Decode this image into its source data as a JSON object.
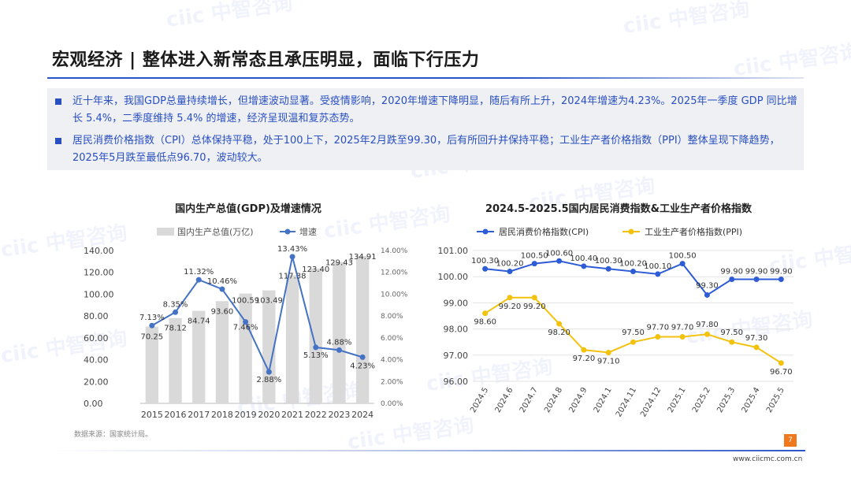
{
  "page": {
    "title": "宏观经济 | 整体进入新常态且承压明显，面临下行压力",
    "bullets": [
      "近十年来，我国GDP总量持续增长，但增速波动显著。受疫情影响，2020年增速下降明显，随后有所上升，2024年增速为4.23%。2025年一季度 GDP 同比增长 5.4%，二季度维持 5.4% 的增速，经济呈现温和复苏态势。",
      "居民消费价格指数（CPI）总体保持平稳，处于100上下，2025年2月跌至99.30，后有所回升并保持平稳；工业生产者价格指数（PPI）整体呈现下降趋势，2025年5月跌至最低点96.70，波动较大。"
    ],
    "source": "数据来源：国家统计局。",
    "page_number": "7",
    "url": "www.ciicmc.com.cn",
    "watermark": "ciic 中智咨询",
    "colors": {
      "accent": "#2a55c8",
      "bar": "#d9d9d9",
      "growth_line": "#4472c4",
      "cpi_line": "#2e5bd6",
      "ppi_line": "#f2c20f",
      "page_badge": "#f0791e"
    }
  },
  "chart_data": [
    {
      "type": "bar",
      "title": "国内生产总值(GDP)及增速情况",
      "categories": [
        "2015",
        "2016",
        "2017",
        "2018",
        "2019",
        "2020",
        "2021",
        "2022",
        "2023",
        "2024"
      ],
      "series": [
        {
          "name": "国内生产总值(万亿)",
          "kind": "bar",
          "axis": "left",
          "values": [
            70.25,
            78.12,
            84.74,
            93.6,
            100.59,
            103.49,
            117.38,
            123.4,
            129.43,
            134.91
          ],
          "labels": [
            "70.25",
            "78.12",
            "84.74",
            "93.60",
            "100.59",
            "103.49",
            "117.38",
            "123.40",
            "129.43",
            "134.91"
          ]
        },
        {
          "name": "增速",
          "kind": "line",
          "axis": "right",
          "values": [
            7.13,
            8.35,
            11.32,
            10.46,
            7.46,
            2.88,
            13.43,
            5.13,
            4.88,
            4.23
          ],
          "labels": [
            "7.13%",
            "8.35%",
            "11.32%",
            "10.46%",
            "7.46%",
            "2.88%",
            "13.43%",
            "5.13%",
            "4.88%",
            "4.23%"
          ]
        }
      ],
      "y_left": {
        "min": 0,
        "max": 140,
        "ticks": [
          "0.00",
          "20.00",
          "40.00",
          "60.00",
          "80.00",
          "100.00",
          "120.00",
          "140.00"
        ]
      },
      "y_right": {
        "min": 0,
        "max": 14,
        "ticks": [
          "0.00%",
          "2.00%",
          "4.00%",
          "6.00%",
          "8.00%",
          "10.00%",
          "12.00%",
          "14.00%"
        ]
      },
      "legend": "top",
      "grid": false
    },
    {
      "type": "line",
      "title": "2024.5-2025.5国内居民消费指数&工业生产者价格指数",
      "categories": [
        "2024.5",
        "2024.6",
        "2024.7",
        "2024.8",
        "2024.9",
        "2024.1",
        "2024.11",
        "2024.12",
        "2025.1",
        "2025.2",
        "2025.3",
        "2025.4",
        "2025.5"
      ],
      "series": [
        {
          "name": "居民消费价格指数(CPI)",
          "values": [
            100.3,
            100.2,
            100.5,
            100.6,
            100.4,
            100.3,
            100.2,
            100.1,
            100.5,
            99.3,
            99.9,
            99.9,
            99.9
          ],
          "labels": [
            "100.30",
            "100.20",
            "100.50",
            "100.60",
            "100.40",
            "100.30",
            "100.20",
            "100.10",
            "100.50",
            "99.30",
            "99.90",
            "99.90",
            "99.90"
          ]
        },
        {
          "name": "工业生产者价格指数(PPI)",
          "values": [
            98.6,
            99.2,
            99.2,
            98.2,
            97.2,
            97.1,
            97.5,
            97.7,
            97.7,
            97.8,
            97.5,
            97.3,
            96.7
          ],
          "labels": [
            "98.60",
            "99.20",
            "99.20",
            "98.20",
            "97.20",
            "97.10",
            "97.50",
            "97.70",
            "97.70",
            "97.80",
            "97.50",
            "97.30",
            "96.70"
          ]
        }
      ],
      "y": {
        "min": 96,
        "max": 101,
        "ticks": [
          "96.00",
          "97.00",
          "98.00",
          "99.00",
          "100.00",
          "101.00"
        ]
      },
      "legend": "top",
      "grid": true
    }
  ]
}
